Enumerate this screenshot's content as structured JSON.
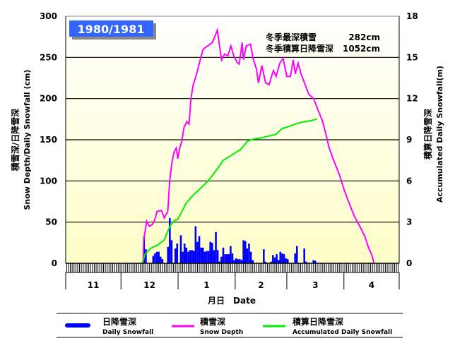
{
  "chart_data": {
    "type": "bar+line",
    "title": "1980/1981",
    "annotations": [
      {
        "label": "冬季最深積雪",
        "value": "282cm"
      },
      {
        "label": "冬季積算日降雪深",
        "value": "1052cm"
      }
    ],
    "xlabel": "月日　Date",
    "ylabel_left": [
      "積雪深/日降雪深",
      "Snow Depth/Daily Snowfall (cm)"
    ],
    "ylabel_right": [
      "積算日降雪深",
      "Accumulated Daily Snowfall(m)"
    ],
    "ylim_left": [
      0,
      300
    ],
    "yticks_left": [
      "0",
      "50",
      "100",
      "150",
      "200",
      "250",
      "300"
    ],
    "ylim_right": [
      0,
      18
    ],
    "yticks_right": [
      "0",
      "3",
      "6",
      "9",
      "12",
      "15",
      "18"
    ],
    "x_unit": "days since Nov 1",
    "xlim": [
      0,
      181
    ],
    "months": [
      {
        "label": "11",
        "days": 30
      },
      {
        "label": "12",
        "days": 31
      },
      {
        "label": "1",
        "days": 31
      },
      {
        "label": "2",
        "days": 28
      },
      {
        "label": "3",
        "days": 31
      },
      {
        "label": "4",
        "days": 30
      }
    ],
    "grid": true,
    "colors": {
      "daily": "#0000ff",
      "depth": "#ff00ff",
      "accum": "#00ee00",
      "title_box": "#3366ff"
    },
    "legend": [
      {
        "jp": "日降雪深",
        "en": "Daily Snowfall"
      },
      {
        "jp": "積雪深",
        "en": "Snow Depth"
      },
      {
        "jp": "積算日降雪深",
        "en": "Accumulated Daily Snowfall"
      }
    ],
    "series": [
      {
        "name": "Daily Snowfall",
        "axis": "left",
        "kind": "bar",
        "points": [
          [
            42,
            32
          ],
          [
            43,
            17
          ],
          [
            47,
            9
          ],
          [
            48,
            12
          ],
          [
            49,
            14
          ],
          [
            50,
            14
          ],
          [
            51,
            8
          ],
          [
            52,
            5
          ],
          [
            55,
            20
          ],
          [
            56,
            55
          ],
          [
            57,
            28
          ],
          [
            59,
            18
          ],
          [
            60,
            24
          ],
          [
            62,
            34
          ],
          [
            63,
            14
          ],
          [
            64,
            24
          ],
          [
            65,
            19
          ],
          [
            66,
            14
          ],
          [
            67,
            16
          ],
          [
            68,
            16
          ],
          [
            69,
            15
          ],
          [
            70,
            45
          ],
          [
            71,
            26
          ],
          [
            72,
            33
          ],
          [
            73,
            19
          ],
          [
            74,
            19
          ],
          [
            75,
            14
          ],
          [
            76,
            15
          ],
          [
            77,
            15
          ],
          [
            78,
            26
          ],
          [
            79,
            25
          ],
          [
            80,
            16
          ],
          [
            81,
            38
          ],
          [
            82,
            16
          ],
          [
            83,
            2
          ],
          [
            84,
            8
          ],
          [
            85,
            19
          ],
          [
            86,
            11
          ],
          [
            87,
            11
          ],
          [
            88,
            11
          ],
          [
            89,
            21
          ],
          [
            90,
            12
          ],
          [
            91,
            4
          ],
          [
            92,
            6
          ],
          [
            93,
            5
          ],
          [
            94,
            5
          ],
          [
            95,
            4
          ],
          [
            96,
            28
          ],
          [
            97,
            27
          ],
          [
            98,
            18
          ],
          [
            99,
            24
          ],
          [
            100,
            14
          ],
          [
            101,
            4
          ],
          [
            107,
            17
          ],
          [
            108,
            2
          ],
          [
            111,
            2
          ],
          [
            112,
            10
          ],
          [
            113,
            7
          ],
          [
            114,
            11
          ],
          [
            115,
            4
          ],
          [
            116,
            14
          ],
          [
            117,
            12
          ],
          [
            118,
            11
          ],
          [
            119,
            6
          ],
          [
            120,
            5
          ],
          [
            124,
            12
          ],
          [
            125,
            21
          ],
          [
            129,
            18
          ],
          [
            130,
            2
          ],
          [
            134,
            4
          ],
          [
            135,
            3
          ]
        ]
      },
      {
        "name": "Snow Depth",
        "axis": "left",
        "kind": "line",
        "points": [
          [
            42,
            0
          ],
          [
            42.3,
            28
          ],
          [
            44,
            51
          ],
          [
            45.4,
            45
          ],
          [
            47,
            47
          ],
          [
            48.5,
            54
          ],
          [
            49.6,
            63
          ],
          [
            52,
            64
          ],
          [
            53.5,
            55
          ],
          [
            54.2,
            58
          ],
          [
            55.4,
            63
          ],
          [
            56.5,
            101
          ],
          [
            57.7,
            123
          ],
          [
            58.8,
            135
          ],
          [
            60,
            140
          ],
          [
            60.8,
            127
          ],
          [
            61.9,
            140
          ],
          [
            63,
            148
          ],
          [
            64.2,
            165
          ],
          [
            65.8,
            172
          ],
          [
            66.9,
            169
          ],
          [
            68,
            200
          ],
          [
            69.2,
            217
          ],
          [
            70.4,
            225
          ],
          [
            71.5,
            234
          ],
          [
            73,
            247
          ],
          [
            74.6,
            260
          ],
          [
            79.6,
            268
          ],
          [
            82.3,
            283
          ],
          [
            83,
            272
          ],
          [
            84.6,
            247
          ],
          [
            86.2,
            254
          ],
          [
            88,
            252
          ],
          [
            89.6,
            264
          ],
          [
            91.2,
            252
          ],
          [
            93,
            244
          ],
          [
            94.2,
            242
          ],
          [
            95.8,
            268
          ],
          [
            96.5,
            247
          ],
          [
            98,
            264
          ],
          [
            100.4,
            266
          ],
          [
            101.5,
            250
          ],
          [
            103.5,
            236
          ],
          [
            104.6,
            219
          ],
          [
            106.5,
            240
          ],
          [
            108.5,
            219
          ],
          [
            110.4,
            217
          ],
          [
            112.7,
            234
          ],
          [
            114.2,
            227
          ],
          [
            116.2,
            243
          ],
          [
            118,
            249
          ],
          [
            120,
            227
          ],
          [
            122,
            227
          ],
          [
            123.5,
            247
          ],
          [
            124.6,
            230
          ],
          [
            126.2,
            243
          ],
          [
            127.7,
            230
          ],
          [
            129.6,
            219
          ],
          [
            132,
            205
          ],
          [
            134.6,
            200
          ],
          [
            137.3,
            184
          ],
          [
            139.2,
            174
          ],
          [
            141.2,
            157
          ],
          [
            143,
            140
          ],
          [
            145.8,
            123
          ],
          [
            148.8,
            106
          ],
          [
            151,
            90
          ],
          [
            153.5,
            75
          ],
          [
            156.5,
            58
          ],
          [
            159.6,
            45
          ],
          [
            162.3,
            33
          ],
          [
            164.2,
            20
          ],
          [
            166.2,
            10
          ],
          [
            167.3,
            0
          ]
        ]
      },
      {
        "name": "Accumulated Daily Snowfall",
        "axis": "right",
        "kind": "line",
        "points": [
          [
            41.5,
            0
          ],
          [
            43.1,
            0.67
          ],
          [
            46.2,
            1.1
          ],
          [
            49.6,
            1.3
          ],
          [
            53.5,
            1.7
          ],
          [
            55,
            2.2
          ],
          [
            57,
            2.8
          ],
          [
            58.8,
            3.1
          ],
          [
            60.8,
            3.2
          ],
          [
            63,
            3.75
          ],
          [
            65,
            4.3
          ],
          [
            68,
            4.8
          ],
          [
            71.9,
            5.3
          ],
          [
            75.8,
            5.8
          ],
          [
            79.6,
            6.4
          ],
          [
            83.5,
            7.1
          ],
          [
            85.4,
            7.5
          ],
          [
            89.2,
            7.8
          ],
          [
            95,
            8.3
          ],
          [
            98.8,
            8.9
          ],
          [
            101.9,
            9.05
          ],
          [
            106.5,
            9.15
          ],
          [
            114.2,
            9.4
          ],
          [
            117.3,
            9.8
          ],
          [
            121.9,
            10.0
          ],
          [
            125.8,
            10.2
          ],
          [
            128.8,
            10.3
          ],
          [
            133.5,
            10.4
          ],
          [
            136.5,
            10.52
          ]
        ]
      }
    ]
  }
}
